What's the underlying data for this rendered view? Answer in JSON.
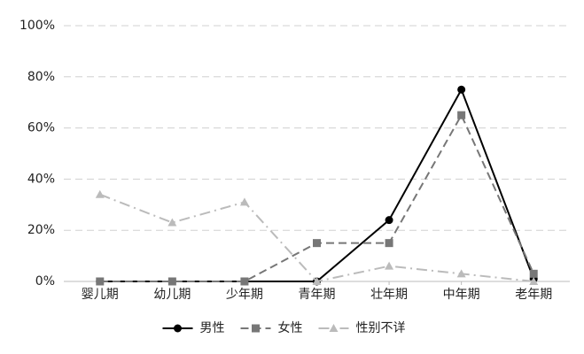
{
  "chart_data": {
    "type": "line",
    "categories": [
      "婴儿期",
      "幼儿期",
      "少年期",
      "青年期",
      "壮年期",
      "中年期",
      "老年期"
    ],
    "series": [
      {
        "name": "男性",
        "color": "#000000",
        "marker": "circle",
        "dash": "solid",
        "values": [
          0,
          0,
          0,
          0,
          24,
          75,
          1
        ]
      },
      {
        "name": "女性",
        "color": "#777777",
        "marker": "square",
        "dash": "dashed",
        "values": [
          0,
          0,
          0,
          15,
          15,
          65,
          3
        ]
      },
      {
        "name": "性别不详",
        "color": "#bbbbbb",
        "marker": "triangle",
        "dash": "dashdot",
        "values": [
          34,
          23,
          31,
          0,
          6,
          3,
          0
        ]
      }
    ],
    "ylim": [
      0,
      100
    ],
    "yticks": [
      {
        "value": 0,
        "label": "0%"
      },
      {
        "value": 20,
        "label": "20%"
      },
      {
        "value": 40,
        "label": "40%"
      },
      {
        "value": 60,
        "label": "60%"
      },
      {
        "value": 80,
        "label": "80%"
      },
      {
        "value": 100,
        "label": "100%"
      }
    ],
    "grid": true,
    "legend": "bottom"
  }
}
